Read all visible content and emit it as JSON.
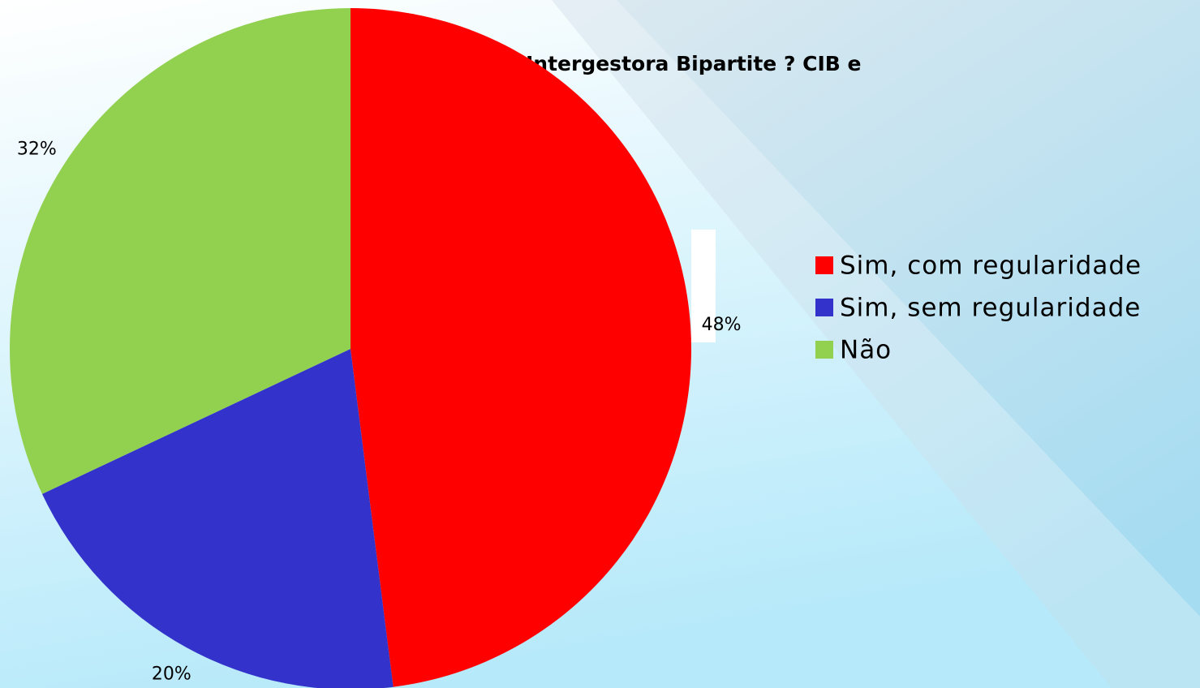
{
  "chart_data": {
    "type": "pie",
    "title": "Intergestora Bipartite ? CIB e",
    "categories": [
      "Sim, com regularidade",
      "Sim, sem regularidade",
      "Não"
    ],
    "values": [
      48,
      20,
      32
    ],
    "value_labels": [
      "48%",
      "20%",
      "32%"
    ],
    "colors": [
      "#ff0000",
      "#3333cc",
      "#92d050"
    ],
    "legend": "right"
  }
}
